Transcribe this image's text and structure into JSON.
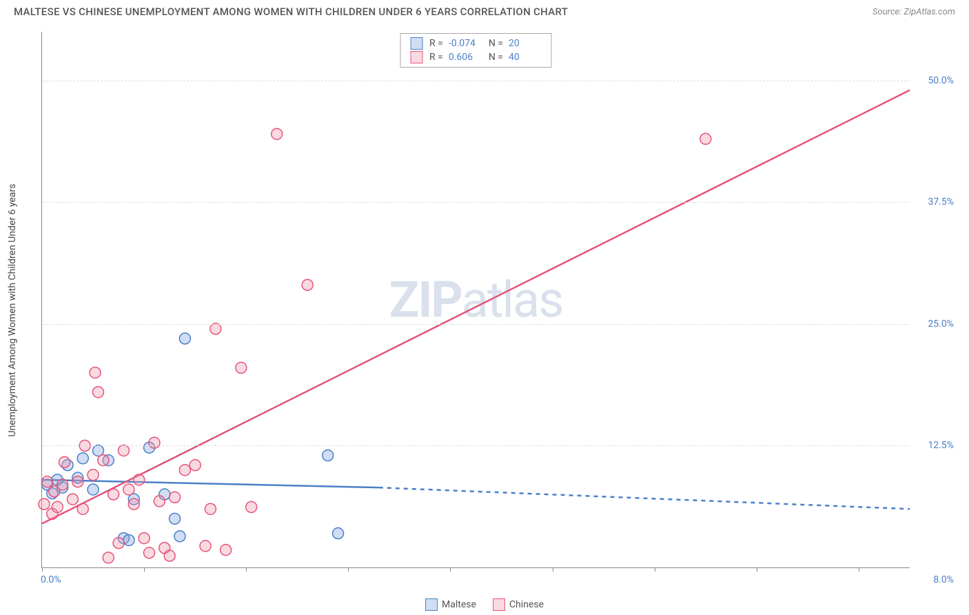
{
  "header": {
    "title": "MALTESE VS CHINESE UNEMPLOYMENT AMONG WOMEN WITH CHILDREN UNDER 6 YEARS CORRELATION CHART",
    "source_label": "Source: ZipAtlas.com"
  },
  "chart": {
    "type": "scatter",
    "ylabel": "Unemployment Among Women with Children Under 6 years",
    "watermark_a": "ZIP",
    "watermark_b": "atlas",
    "background_color": "#ffffff",
    "grid_color": "#dddddd",
    "axis_color": "#888888",
    "xlim": [
      0,
      8.5
    ],
    "ylim": [
      0,
      55
    ],
    "xtick_positions": [
      0,
      1,
      2,
      3,
      4,
      5,
      6,
      7,
      8
    ],
    "xaxis_label_left": "0.0%",
    "xaxis_label_right": "8.0%",
    "ygrid": [
      {
        "value": 12.5,
        "label": "12.5%"
      },
      {
        "value": 25.0,
        "label": "25.0%"
      },
      {
        "value": 37.5,
        "label": "37.5%"
      },
      {
        "value": 50.0,
        "label": "50.0%"
      }
    ],
    "marker_radius": 8,
    "marker_stroke_width": 1.5,
    "line_width": 2.5,
    "series": [
      {
        "name": "Maltese",
        "fill": "rgba(120,160,220,0.35)",
        "stroke": "#4a7fc9",
        "points": [
          [
            0.05,
            8.5
          ],
          [
            0.1,
            7.6
          ],
          [
            0.15,
            9.0
          ],
          [
            0.2,
            8.2
          ],
          [
            0.25,
            10.5
          ],
          [
            0.35,
            9.2
          ],
          [
            0.4,
            11.2
          ],
          [
            0.5,
            8.0
          ],
          [
            0.55,
            12.0
          ],
          [
            0.65,
            11.0
          ],
          [
            0.8,
            3.0
          ],
          [
            0.85,
            2.8
          ],
          [
            0.9,
            7.0
          ],
          [
            1.05,
            12.3
          ],
          [
            1.2,
            7.5
          ],
          [
            1.3,
            5.0
          ],
          [
            1.35,
            3.2
          ],
          [
            1.4,
            23.5
          ],
          [
            2.8,
            11.5
          ],
          [
            2.9,
            3.5
          ]
        ],
        "regression": {
          "solid": {
            "x1": 0,
            "y1": 9.0,
            "x2": 3.3,
            "y2": 8.2
          },
          "dashed": {
            "x1": 3.3,
            "y1": 8.2,
            "x2": 8.5,
            "y2": 6.0
          }
        }
      },
      {
        "name": "Chinese",
        "fill": "rgba(240,150,170,0.35)",
        "stroke": "#e6537a",
        "points": [
          [
            0.02,
            6.5
          ],
          [
            0.05,
            8.8
          ],
          [
            0.1,
            5.5
          ],
          [
            0.12,
            7.8
          ],
          [
            0.15,
            6.2
          ],
          [
            0.2,
            8.5
          ],
          [
            0.22,
            10.8
          ],
          [
            0.3,
            7.0
          ],
          [
            0.35,
            8.8
          ],
          [
            0.4,
            6.0
          ],
          [
            0.42,
            12.5
          ],
          [
            0.5,
            9.5
          ],
          [
            0.52,
            20.0
          ],
          [
            0.55,
            18.0
          ],
          [
            0.6,
            11.0
          ],
          [
            0.65,
            1.0
          ],
          [
            0.7,
            7.5
          ],
          [
            0.75,
            2.5
          ],
          [
            0.8,
            12.0
          ],
          [
            0.85,
            8.0
          ],
          [
            0.9,
            6.5
          ],
          [
            0.95,
            9.0
          ],
          [
            1.0,
            3.0
          ],
          [
            1.05,
            1.5
          ],
          [
            1.1,
            12.8
          ],
          [
            1.15,
            6.8
          ],
          [
            1.2,
            2.0
          ],
          [
            1.25,
            1.2
          ],
          [
            1.3,
            7.2
          ],
          [
            1.4,
            10.0
          ],
          [
            1.5,
            10.5
          ],
          [
            1.6,
            2.2
          ],
          [
            1.65,
            6.0
          ],
          [
            1.7,
            24.5
          ],
          [
            1.8,
            1.8
          ],
          [
            1.95,
            20.5
          ],
          [
            2.05,
            6.2
          ],
          [
            2.3,
            44.5
          ],
          [
            2.6,
            29.0
          ],
          [
            6.5,
            44.0
          ]
        ],
        "regression": {
          "solid": {
            "x1": 0,
            "y1": 4.5,
            "x2": 8.5,
            "y2": 49.0
          }
        }
      }
    ],
    "stats": [
      {
        "series": 0,
        "r_label": "R =",
        "r": "-0.074",
        "n_label": "N =",
        "n": "20"
      },
      {
        "series": 1,
        "r_label": "R =",
        "r": "0.606",
        "n_label": "N =",
        "n": "40"
      }
    ],
    "legend": [
      {
        "series": 0,
        "label": "Maltese"
      },
      {
        "series": 1,
        "label": "Chinese"
      }
    ]
  }
}
